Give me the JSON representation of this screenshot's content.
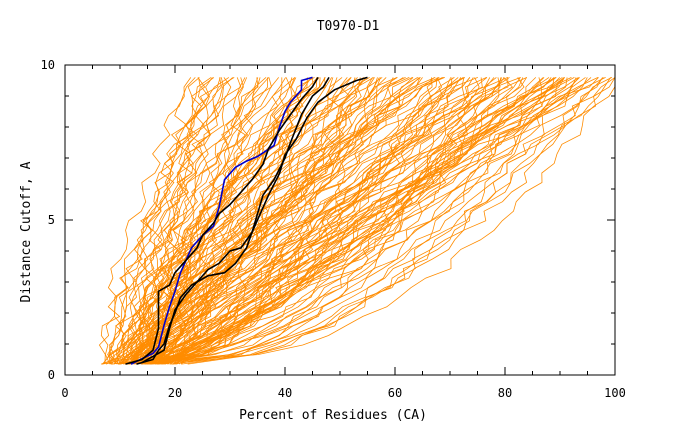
{
  "chart_data": {
    "type": "line",
    "title": "T0970-D1",
    "xlabel": "Percent of Residues (CA)",
    "ylabel": "Distance Cutoff, A",
    "xlim": [
      0,
      100
    ],
    "ylim": [
      0,
      10
    ],
    "x_ticks": [
      "0",
      "20",
      "40",
      "60",
      "80",
      "100"
    ],
    "y_ticks": [
      "0",
      "5",
      "10"
    ],
    "grid": false,
    "colors": {
      "background_curves": "#ff8c00",
      "highlight_blue": "#0000cc",
      "highlight_black": "#000000",
      "axes": "#000000"
    },
    "highlighted_series": [
      {
        "color": "#0000cc",
        "points": [
          [
            12,
            0.35
          ],
          [
            16,
            0.7
          ],
          [
            17,
            0.9
          ],
          [
            18,
            1.6
          ],
          [
            19,
            2.2
          ],
          [
            20,
            2.7
          ],
          [
            21,
            3.3
          ],
          [
            23,
            4.1
          ],
          [
            25,
            4.5
          ],
          [
            27,
            4.8
          ],
          [
            28,
            5.4
          ],
          [
            29,
            6.3
          ],
          [
            31,
            6.7
          ],
          [
            33,
            6.9
          ],
          [
            35,
            7.05
          ],
          [
            38,
            7.4
          ],
          [
            39,
            8.0
          ],
          [
            40,
            8.5
          ],
          [
            41,
            8.8
          ],
          [
            43,
            9.2
          ],
          [
            43,
            9.5
          ],
          [
            45,
            9.6
          ]
        ]
      },
      {
        "color": "#000000",
        "points": [
          [
            14,
            0.4
          ],
          [
            17,
            0.7
          ],
          [
            18,
            0.8
          ],
          [
            19,
            1.5
          ],
          [
            20,
            2.1
          ],
          [
            22,
            2.6
          ],
          [
            24,
            3.0
          ],
          [
            26,
            3.4
          ],
          [
            28,
            3.6
          ],
          [
            30,
            4.0
          ],
          [
            32,
            4.1
          ],
          [
            34,
            4.6
          ],
          [
            35,
            5.2
          ],
          [
            36,
            5.8
          ],
          [
            38,
            6.3
          ],
          [
            40,
            7.0
          ],
          [
            41,
            7.5
          ],
          [
            43,
            8.4
          ],
          [
            45,
            9.0
          ],
          [
            47,
            9.3
          ],
          [
            48,
            9.6
          ]
        ]
      },
      {
        "color": "#000000",
        "points": [
          [
            13,
            0.35
          ],
          [
            16,
            0.5
          ],
          [
            17,
            0.8
          ],
          [
            18,
            1.0
          ],
          [
            19,
            1.6
          ],
          [
            20,
            2.0
          ],
          [
            21,
            2.5
          ],
          [
            23,
            2.9
          ],
          [
            26,
            3.2
          ],
          [
            29,
            3.3
          ],
          [
            31,
            3.6
          ],
          [
            33,
            4.1
          ],
          [
            34,
            4.6
          ],
          [
            36,
            5.4
          ],
          [
            37,
            5.8
          ],
          [
            39,
            6.5
          ],
          [
            40,
            7.1
          ],
          [
            42,
            7.6
          ],
          [
            44,
            8.3
          ],
          [
            46,
            8.8
          ],
          [
            49,
            9.2
          ],
          [
            53,
            9.5
          ],
          [
            55,
            9.6
          ]
        ]
      },
      {
        "color": "#000000",
        "points": [
          [
            11,
            0.35
          ],
          [
            14,
            0.5
          ],
          [
            16,
            0.8
          ],
          [
            17,
            1.5
          ],
          [
            17,
            2.1
          ],
          [
            17,
            2.7
          ],
          [
            19,
            2.9
          ],
          [
            20,
            3.3
          ],
          [
            22,
            3.7
          ],
          [
            24,
            4.1
          ],
          [
            25,
            4.5
          ],
          [
            27,
            4.9
          ],
          [
            28,
            5.2
          ],
          [
            30,
            5.5
          ],
          [
            32,
            5.9
          ],
          [
            34,
            6.3
          ],
          [
            36,
            6.8
          ],
          [
            37,
            7.3
          ],
          [
            39,
            7.9
          ],
          [
            41,
            8.4
          ],
          [
            43,
            8.9
          ],
          [
            45,
            9.3
          ],
          [
            46,
            9.6
          ]
        ]
      }
    ]
  }
}
